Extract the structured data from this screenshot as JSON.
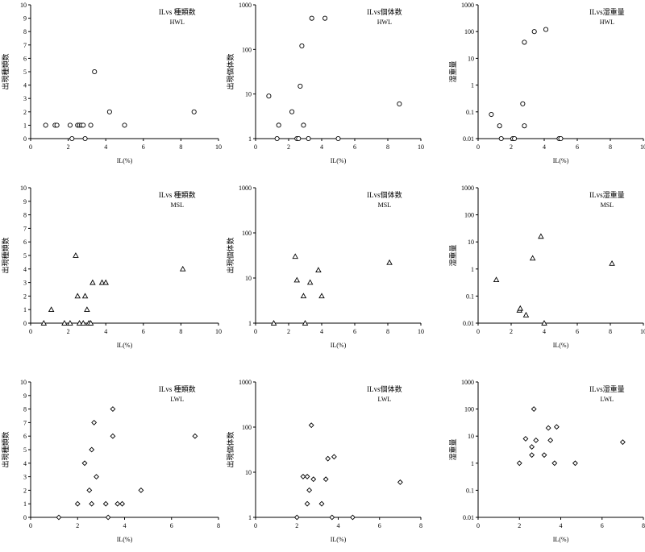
{
  "chart_data": [
    {
      "type": "scatter",
      "title": "ILvs 種類数",
      "subtitle": "HWL",
      "xlabel": "IL(%)",
      "ylabel": "出現種類数",
      "xlim": [
        0,
        10
      ],
      "ylim": [
        0,
        10
      ],
      "xticks": [
        0,
        2,
        4,
        6,
        8,
        10
      ],
      "yticks": [
        0,
        1,
        2,
        3,
        4,
        5,
        6,
        7,
        8,
        9,
        10
      ],
      "yscale": "linear",
      "marker": "circle",
      "points": [
        [
          0.8,
          1
        ],
        [
          1.3,
          1
        ],
        [
          1.4,
          1
        ],
        [
          2.1,
          1
        ],
        [
          2.2,
          0
        ],
        [
          2.5,
          1
        ],
        [
          2.6,
          1
        ],
        [
          2.7,
          1
        ],
        [
          2.8,
          1
        ],
        [
          2.9,
          0
        ],
        [
          3.2,
          1
        ],
        [
          3.4,
          5
        ],
        [
          4.2,
          2
        ],
        [
          5.0,
          1
        ],
        [
          8.7,
          2
        ]
      ]
    },
    {
      "type": "scatter",
      "title": "ILvs個体数",
      "subtitle": "HWL",
      "xlabel": "IL(%)",
      "ylabel": "出現個体数",
      "xlim": [
        0,
        10
      ],
      "ylim": [
        1,
        1000
      ],
      "xticks": [
        0,
        2,
        4,
        6,
        8,
        10
      ],
      "yticks": [
        1,
        10,
        100,
        1000
      ],
      "yscale": "log",
      "marker": "circle",
      "points": [
        [
          0.8,
          9
        ],
        [
          1.3,
          1
        ],
        [
          1.4,
          2
        ],
        [
          2.2,
          4
        ],
        [
          2.5,
          1
        ],
        [
          2.6,
          1
        ],
        [
          2.7,
          15
        ],
        [
          2.8,
          120
        ],
        [
          2.9,
          2
        ],
        [
          3.2,
          1
        ],
        [
          3.4,
          500
        ],
        [
          4.2,
          500
        ],
        [
          5.0,
          1
        ],
        [
          8.7,
          6
        ]
      ]
    },
    {
      "type": "scatter",
      "title": "ILvs湿重量",
      "subtitle": "HWL",
      "xlabel": "IL(%)",
      "ylabel": "湿重量",
      "xlim": [
        0,
        10
      ],
      "ylim": [
        0.01,
        1000
      ],
      "xticks": [
        0,
        2,
        4,
        6,
        8,
        10
      ],
      "yticks": [
        0.01,
        0.1,
        1,
        10,
        100,
        1000
      ],
      "yscale": "log",
      "marker": "circle",
      "points": [
        [
          0.8,
          0.08
        ],
        [
          1.3,
          0.03
        ],
        [
          1.4,
          0.01
        ],
        [
          2.1,
          0.01
        ],
        [
          2.2,
          0.01
        ],
        [
          2.7,
          0.2
        ],
        [
          2.8,
          0.03
        ],
        [
          2.8,
          40
        ],
        [
          3.4,
          100
        ],
        [
          4.1,
          120
        ],
        [
          4.9,
          0.01
        ],
        [
          5.0,
          0.01
        ]
      ]
    },
    {
      "type": "scatter",
      "title": "ILvs 種類数",
      "subtitle": "MSL",
      "xlabel": "IL(%)",
      "ylabel": "出現種類数",
      "xlim": [
        0,
        10
      ],
      "ylim": [
        0,
        10
      ],
      "xticks": [
        0,
        2,
        4,
        6,
        8,
        10
      ],
      "yticks": [
        0,
        1,
        2,
        3,
        4,
        5,
        6,
        7,
        8,
        9,
        10
      ],
      "yscale": "linear",
      "marker": "triangle",
      "points": [
        [
          0.7,
          0
        ],
        [
          1.1,
          1
        ],
        [
          1.8,
          0
        ],
        [
          2.1,
          0
        ],
        [
          2.4,
          5
        ],
        [
          2.5,
          2
        ],
        [
          2.6,
          0
        ],
        [
          2.8,
          0
        ],
        [
          2.9,
          2
        ],
        [
          3.0,
          1
        ],
        [
          3.1,
          0
        ],
        [
          3.2,
          0
        ],
        [
          3.3,
          3
        ],
        [
          3.8,
          3
        ],
        [
          4.0,
          3
        ],
        [
          8.1,
          4
        ]
      ]
    },
    {
      "type": "scatter",
      "title": "ILvs個体数",
      "subtitle": "MSL",
      "xlabel": "IL(%)",
      "ylabel": "出現個体数",
      "xlim": [
        0,
        10
      ],
      "ylim": [
        1,
        1000
      ],
      "xticks": [
        0,
        2,
        4,
        6,
        8,
        10
      ],
      "yticks": [
        1,
        10,
        100,
        1000
      ],
      "yscale": "log",
      "marker": "triangle",
      "points": [
        [
          1.1,
          1
        ],
        [
          2.4,
          30
        ],
        [
          2.5,
          9
        ],
        [
          2.9,
          4
        ],
        [
          3.0,
          1
        ],
        [
          3.3,
          8
        ],
        [
          3.8,
          15
        ],
        [
          4.0,
          4
        ],
        [
          8.1,
          22
        ]
      ]
    },
    {
      "type": "scatter",
      "title": "ILvs湿重量",
      "subtitle": "MSL",
      "xlabel": "IL(%)",
      "ylabel": "湿重量",
      "xlim": [
        0,
        10
      ],
      "ylim": [
        0.01,
        1000
      ],
      "xticks": [
        0,
        2,
        4,
        6,
        8,
        10
      ],
      "yticks": [
        0.01,
        0.1,
        1,
        10,
        100,
        1000
      ],
      "yscale": "log",
      "marker": "triangle",
      "points": [
        [
          1.1,
          0.4
        ],
        [
          2.5,
          0.03
        ],
        [
          2.55,
          0.035
        ],
        [
          2.9,
          0.02
        ],
        [
          3.3,
          2.5
        ],
        [
          3.8,
          16
        ],
        [
          4.0,
          0.01
        ],
        [
          8.1,
          1.6
        ]
      ]
    },
    {
      "type": "scatter",
      "title": "ILvs 種類数",
      "subtitle": "LWL",
      "xlabel": "IL(%)",
      "ylabel": "出現種類数",
      "xlim": [
        0,
        8
      ],
      "ylim": [
        0,
        10
      ],
      "xticks": [
        0,
        2,
        4,
        6,
        8
      ],
      "yticks": [
        0,
        1,
        2,
        3,
        4,
        5,
        6,
        7,
        8,
        9,
        10
      ],
      "yscale": "linear",
      "marker": "diamond",
      "points": [
        [
          1.2,
          0
        ],
        [
          2.0,
          1
        ],
        [
          2.3,
          4
        ],
        [
          2.5,
          2
        ],
        [
          2.6,
          5
        ],
        [
          2.6,
          1
        ],
        [
          2.7,
          7
        ],
        [
          2.8,
          3
        ],
        [
          3.2,
          1
        ],
        [
          3.3,
          0
        ],
        [
          3.5,
          6
        ],
        [
          3.5,
          8
        ],
        [
          3.7,
          1
        ],
        [
          3.9,
          1
        ],
        [
          4.7,
          2
        ],
        [
          7.0,
          6
        ]
      ]
    },
    {
      "type": "scatter",
      "title": "ILvs個体数",
      "subtitle": "LWL",
      "xlabel": "IL(%)",
      "ylabel": "出現個体数",
      "xlim": [
        0,
        8
      ],
      "ylim": [
        1,
        1000
      ],
      "xticks": [
        0,
        2,
        4,
        6,
        8
      ],
      "yticks": [
        1,
        10,
        100,
        1000
      ],
      "yscale": "log",
      "marker": "diamond",
      "points": [
        [
          2.0,
          1
        ],
        [
          2.3,
          8
        ],
        [
          2.5,
          8
        ],
        [
          2.5,
          2
        ],
        [
          2.6,
          4
        ],
        [
          2.7,
          110
        ],
        [
          2.8,
          7
        ],
        [
          3.2,
          2
        ],
        [
          3.4,
          7
        ],
        [
          3.5,
          20
        ],
        [
          3.7,
          1
        ],
        [
          3.8,
          22
        ],
        [
          4.7,
          1
        ],
        [
          7.0,
          6
        ]
      ]
    },
    {
      "type": "scatter",
      "title": "ILvs湿重量",
      "subtitle": "LWL",
      "xlabel": "IL(%)",
      "ylabel": "湿重量",
      "xlim": [
        0,
        8
      ],
      "ylim": [
        0.01,
        1000
      ],
      "xticks": [
        0,
        2,
        4,
        6,
        8
      ],
      "yticks": [
        0.01,
        0.1,
        1,
        10,
        100,
        1000
      ],
      "yscale": "log",
      "marker": "diamond",
      "points": [
        [
          2.0,
          1
        ],
        [
          2.3,
          8
        ],
        [
          2.6,
          4
        ],
        [
          2.6,
          2
        ],
        [
          2.7,
          100
        ],
        [
          2.8,
          7
        ],
        [
          3.2,
          2
        ],
        [
          3.4,
          20
        ],
        [
          3.5,
          7
        ],
        [
          3.7,
          1
        ],
        [
          3.8,
          22
        ],
        [
          4.7,
          1
        ],
        [
          7.0,
          6
        ]
      ]
    }
  ]
}
